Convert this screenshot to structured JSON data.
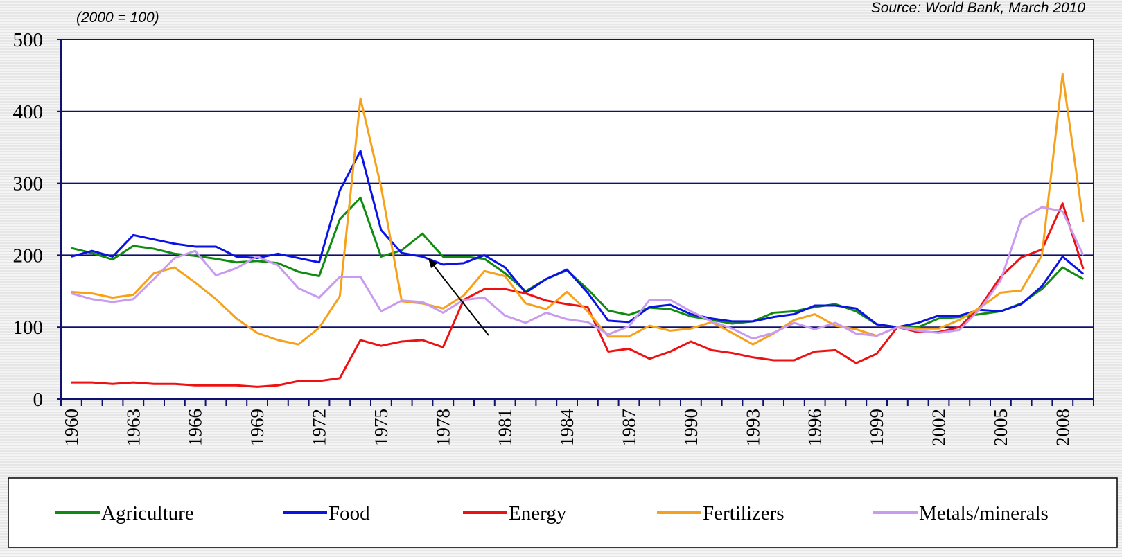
{
  "chart_data": {
    "type": "line",
    "subtitle": "(2000 = 100)",
    "source": "Source: World Bank, March 2010",
    "categories": [
      "1960",
      null,
      null,
      "1963",
      null,
      null,
      "1966",
      null,
      null,
      "1969",
      null,
      null,
      "1972",
      null,
      null,
      "1975",
      null,
      null,
      "1978",
      null,
      null,
      "1981",
      null,
      null,
      "1984",
      null,
      null,
      "1987",
      null,
      null,
      "1990",
      null,
      null,
      "1993",
      null,
      null,
      "1996",
      null,
      null,
      "1999",
      null,
      null,
      "2002",
      null,
      null,
      "2005",
      null,
      null,
      "2008",
      null
    ],
    "series": [
      {
        "name": "Agriculture",
        "color": "#108a10",
        "values": [
          210,
          203,
          194,
          213,
          209,
          202,
          199,
          195,
          190,
          192,
          189,
          177,
          171,
          250,
          280,
          198,
          207,
          230,
          198,
          198,
          195,
          175,
          150,
          167,
          179,
          153,
          123,
          117,
          127,
          125,
          115,
          110,
          105,
          108,
          120,
          122,
          128,
          132,
          122,
          104,
          100,
          100,
          112,
          114,
          118,
          122,
          133,
          153,
          183,
          167
        ]
      },
      {
        "name": "Food",
        "color": "#0a12e6",
        "values": [
          198,
          206,
          198,
          228,
          222,
          216,
          212,
          212,
          198,
          196,
          202,
          196,
          190,
          290,
          345,
          235,
          203,
          198,
          187,
          189,
          200,
          183,
          148,
          167,
          180,
          148,
          109,
          107,
          128,
          131,
          118,
          112,
          108,
          108,
          114,
          118,
          130,
          130,
          126,
          104,
          100,
          106,
          116,
          116,
          124,
          122,
          132,
          157,
          198,
          174
        ]
      },
      {
        "name": "Energy",
        "color": "#ee1111",
        "values": [
          23,
          23,
          21,
          23,
          21,
          21,
          19,
          19,
          19,
          17,
          19,
          25,
          25,
          29,
          82,
          74,
          80,
          82,
          72,
          138,
          153,
          153,
          147,
          137,
          132,
          128,
          66,
          70,
          56,
          66,
          80,
          68,
          64,
          58,
          54,
          54,
          66,
          68,
          50,
          63,
          100,
          93,
          93,
          100,
          128,
          170,
          197,
          208,
          272,
          181
        ]
      },
      {
        "name": "Fertilizers",
        "color": "#f7a11a",
        "values": [
          149,
          147,
          141,
          145,
          175,
          183,
          162,
          139,
          112,
          92,
          82,
          76,
          99,
          143,
          418,
          295,
          136,
          133,
          126,
          144,
          178,
          171,
          133,
          125,
          149,
          122,
          87,
          87,
          102,
          95,
          98,
          107,
          92,
          76,
          91,
          110,
          118,
          102,
          97,
          88,
          100,
          98,
          98,
          110,
          127,
          148,
          151,
          200,
          452,
          246
        ]
      },
      {
        "name": "Metals/minerals",
        "color": "#c89af0",
        "values": [
          147,
          139,
          135,
          139,
          167,
          196,
          206,
          172,
          182,
          198,
          186,
          154,
          141,
          170,
          170,
          122,
          137,
          135,
          120,
          138,
          141,
          116,
          106,
          120,
          111,
          107,
          90,
          101,
          138,
          138,
          122,
          108,
          98,
          84,
          92,
          106,
          97,
          106,
          91,
          88,
          100,
          95,
          92,
          96,
          125,
          165,
          250,
          267,
          261,
          200
        ]
      }
    ],
    "ylim": [
      0,
      500
    ],
    "yticks": [
      0,
      100,
      200,
      300,
      400,
      500
    ],
    "grid": true
  }
}
